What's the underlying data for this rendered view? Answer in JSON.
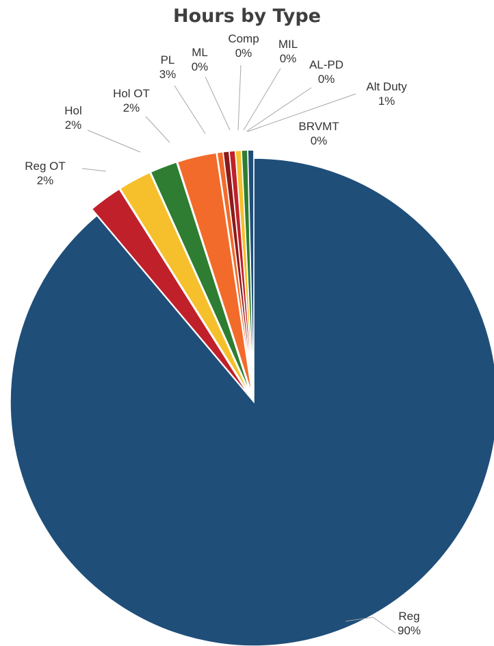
{
  "chart_data": {
    "type": "pie",
    "title": "Hours by Type",
    "slices": [
      {
        "label": "Reg",
        "pct_text": "90%",
        "value": 90.3,
        "color": "#1f4e79",
        "exploded": false
      },
      {
        "label": "Reg OT",
        "pct_text": "2%",
        "value": 2.2,
        "color": "#c0202a",
        "exploded": true
      },
      {
        "label": "Hol",
        "pct_text": "2%",
        "value": 2.2,
        "color": "#f5c02c",
        "exploded": true
      },
      {
        "label": "Hol OT",
        "pct_text": "2%",
        "value": 1.8,
        "color": "#2e7d32",
        "exploded": true
      },
      {
        "label": "PL",
        "pct_text": "3%",
        "value": 2.6,
        "color": "#f26b2b",
        "exploded": true
      },
      {
        "label": "ML",
        "pct_text": "0%",
        "value": 0.01,
        "color": "#f26b2b",
        "exploded": true
      },
      {
        "label": "Comp",
        "pct_text": "0%",
        "value": 0.25,
        "color": "#8b1a1a",
        "exploded": true
      },
      {
        "label": "MIL",
        "pct_text": "0%",
        "value": 0.2,
        "color": "#c0202a",
        "exploded": true
      },
      {
        "label": "AL-PD",
        "pct_text": "0%",
        "value": 0.01,
        "color": "#f5c02c",
        "exploded": true
      },
      {
        "label": "Alt Duty",
        "pct_text": "1%",
        "value": 0.4,
        "color": "#2e7d32",
        "exploded": true
      },
      {
        "label": "BRVMT",
        "pct_text": "0%",
        "value": 0.02,
        "color": "#1f4e79",
        "exploded": true
      }
    ],
    "legend": "none",
    "start_angle": "12 o'clock, counterclockwise from Reg"
  }
}
